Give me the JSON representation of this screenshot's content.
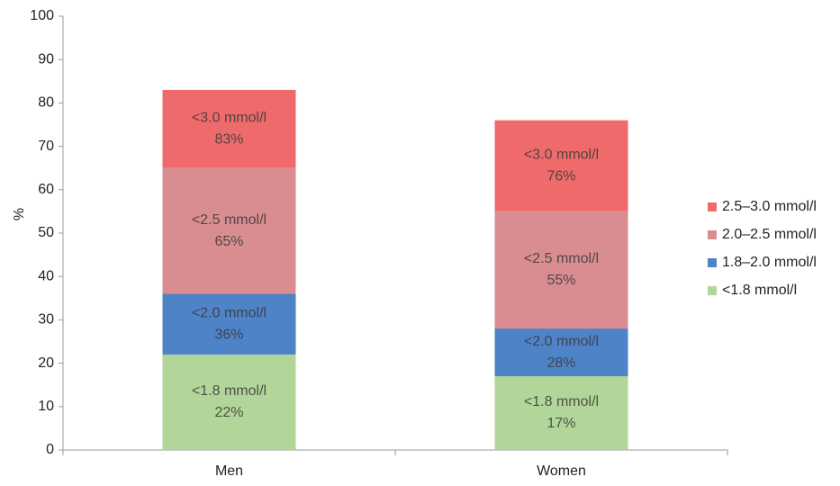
{
  "chart_data": {
    "type": "stacked_bar",
    "y_label": "%",
    "categories": [
      "Men",
      "Women"
    ],
    "series": [
      {
        "name": "<1.8 mmol/l",
        "color": "#b2d69a",
        "values": [
          22,
          17
        ],
        "annotations": [
          [
            "<1.8 mmol/l",
            "22%"
          ],
          [
            "<1.8 mmol/l",
            "17%"
          ]
        ]
      },
      {
        "name": "1.8–2.0 mmol/l",
        "color": "#4f83c8",
        "values": [
          14,
          11
        ],
        "annotations": [
          [
            "<2.0 mmol/l",
            "36%"
          ],
          [
            "<2.0 mmol/l",
            "28%"
          ]
        ]
      },
      {
        "name": "2.0–2.5 mmol/l",
        "color": "#d98d91",
        "values": [
          29,
          27
        ],
        "annotations": [
          [
            "<2.5 mmol/l",
            "65%"
          ],
          [
            "<2.5 mmol/l",
            "55%"
          ]
        ]
      },
      {
        "name": "2.5–3.0 mmol/l",
        "color": "#ef6b6b",
        "values": [
          18,
          21
        ],
        "annotations": [
          [
            "<3.0 mmol/l",
            "83%"
          ],
          [
            "<3.0 mmol/l",
            "76%"
          ]
        ]
      }
    ],
    "ylim": [
      0,
      100
    ],
    "yticks": [
      0,
      10,
      20,
      30,
      40,
      50,
      60,
      70,
      80,
      90,
      100
    ],
    "grid": false,
    "legend": "right"
  }
}
